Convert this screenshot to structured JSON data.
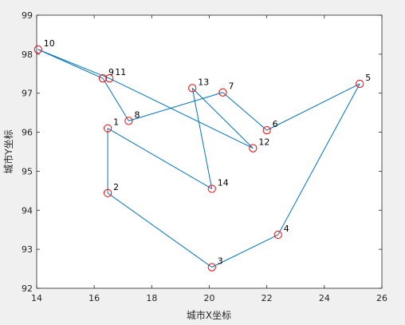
{
  "chart_data": {
    "type": "line",
    "title": "",
    "xlabel": "城市X坐标",
    "ylabel": "城市Y坐标",
    "xlim": [
      14,
      26
    ],
    "ylim": [
      92,
      99
    ],
    "xticks": [
      "14",
      "16",
      "18",
      "20",
      "22",
      "24",
      "26"
    ],
    "yticks": [
      "92",
      "93",
      "94",
      "95",
      "96",
      "97",
      "98",
      "99"
    ],
    "grid": false,
    "points": [
      {
        "id": "1",
        "x": 16.47,
        "y": 96.1
      },
      {
        "id": "2",
        "x": 16.47,
        "y": 94.44
      },
      {
        "id": "3",
        "x": 20.09,
        "y": 92.54
      },
      {
        "id": "4",
        "x": 22.39,
        "y": 93.37
      },
      {
        "id": "5",
        "x": 25.23,
        "y": 97.24
      },
      {
        "id": "6",
        "x": 22.0,
        "y": 96.05
      },
      {
        "id": "7",
        "x": 20.47,
        "y": 97.02
      },
      {
        "id": "8",
        "x": 17.2,
        "y": 96.29
      },
      {
        "id": "9",
        "x": 16.3,
        "y": 97.38
      },
      {
        "id": "10",
        "x": 14.05,
        "y": 98.12
      },
      {
        "id": "11",
        "x": 16.53,
        "y": 97.38
      },
      {
        "id": "12",
        "x": 21.52,
        "y": 95.59
      },
      {
        "id": "13",
        "x": 19.41,
        "y": 97.13
      },
      {
        "id": "14",
        "x": 20.09,
        "y": 94.55
      }
    ],
    "route": [
      "14",
      "1",
      "2",
      "3",
      "4",
      "5",
      "6",
      "7",
      "8",
      "9",
      "10",
      "11",
      "12",
      "13",
      "14"
    ],
    "colors": {
      "line": "#0072bd",
      "marker": "#ff0000",
      "plot_background": "#ffffff",
      "figure_background": "#f0f0f0",
      "axis": "#262626"
    }
  }
}
